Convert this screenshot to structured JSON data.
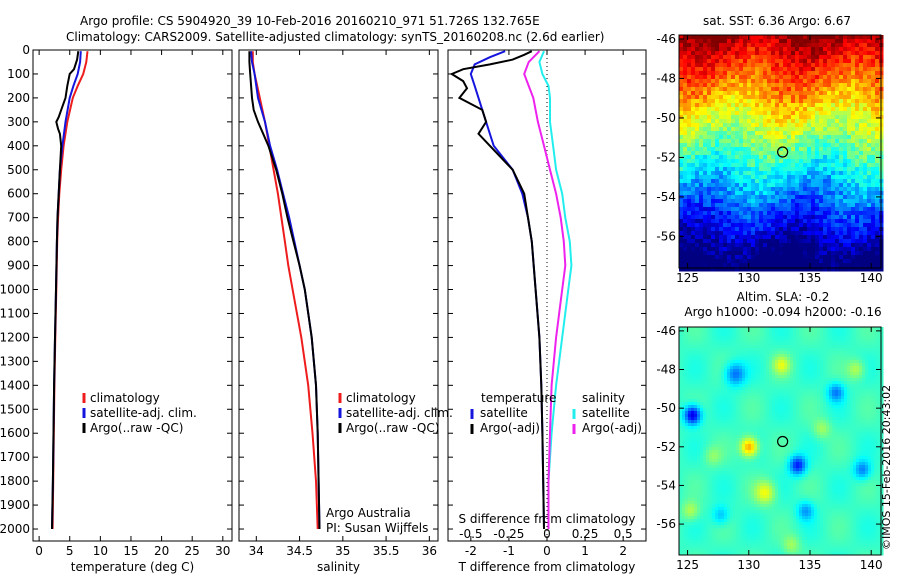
{
  "title_line1": "Argo profile: CS 5904920_39 10-Feb-2016 20160210_971 51.726S 132.765E",
  "title_line2": "Climatology: CARS2009. Satellite-adjusted climatology: synTS_20160208.nc (2.6d earlier)",
  "watermark": "©IMOS 15-Feb-2016 20:43:02",
  "colors": {
    "red": "#ee1c1c",
    "blue": "#1515dd",
    "black": "#000000",
    "cyan": "#22eeee",
    "magenta": "#ee22ee"
  },
  "chart_data": [
    {
      "id": "temperature",
      "type": "line",
      "xlabel": "temperature (deg C)",
      "ylabel": "",
      "xlim": [
        -1,
        31.5
      ],
      "ylim": [
        2050,
        0
      ],
      "xticks": [
        0,
        5,
        10,
        15,
        20,
        25,
        30
      ],
      "xtick_labels": [
        "0",
        "5",
        "10",
        "15",
        "20",
        "25",
        "30"
      ],
      "yticks": [
        0,
        100,
        200,
        300,
        400,
        500,
        600,
        700,
        800,
        900,
        1000,
        1100,
        1200,
        1300,
        1400,
        1500,
        1600,
        1700,
        1800,
        1900,
        2000
      ],
      "ytick_labels": [
        "0",
        "100",
        "200",
        "300",
        "400",
        "500",
        "600",
        "700",
        "800",
        "900",
        "1000",
        "1100",
        "1200",
        "1300",
        "1400",
        "1500",
        "1600",
        "1700",
        "1800",
        "1900",
        "2000"
      ],
      "legend": [
        "climatology",
        "satellite-adj. clim.",
        "Argo(..raw -QC)"
      ],
      "legend_placement": "center",
      "series": [
        {
          "name": "climatology",
          "color": "red",
          "depth": [
            5,
            50,
            100,
            150,
            200,
            300,
            400,
            500,
            600,
            700,
            800,
            1000,
            1200,
            1400,
            1600,
            1800,
            2000
          ],
          "values": [
            7.9,
            7.7,
            7.2,
            6.3,
            5.5,
            4.6,
            4.0,
            3.6,
            3.3,
            3.1,
            2.95,
            2.8,
            2.65,
            2.5,
            2.4,
            2.3,
            2.2
          ]
        },
        {
          "name": "satellite-adj. clim.",
          "color": "blue",
          "depth": [
            5,
            50,
            100,
            150,
            200,
            300,
            400,
            500,
            600,
            700,
            800,
            1000,
            1200,
            1400,
            1600,
            1800,
            2000
          ],
          "values": [
            6.8,
            6.7,
            6.3,
            5.6,
            5.0,
            4.3,
            3.8,
            3.4,
            3.2,
            3.0,
            2.9,
            2.75,
            2.6,
            2.45,
            2.35,
            2.25,
            2.1
          ]
        },
        {
          "name": "Argo(..raw -QC)",
          "color": "black",
          "depth": [
            5,
            40,
            80,
            100,
            150,
            200,
            250,
            280,
            300,
            330,
            350,
            400,
            500,
            600,
            700,
            800,
            1000,
            1200,
            1400,
            1600,
            1800,
            2000
          ],
          "values": [
            6.4,
            6.2,
            5.7,
            5.0,
            4.6,
            4.3,
            3.6,
            3.2,
            2.8,
            3.1,
            3.4,
            3.6,
            3.4,
            3.2,
            3.0,
            2.9,
            2.75,
            2.6,
            2.45,
            2.35,
            2.25,
            2.1
          ]
        }
      ]
    },
    {
      "id": "salinity",
      "type": "line",
      "xlabel": "salinity",
      "ylabel": "",
      "xlim": [
        33.8,
        36.1
      ],
      "ylim": [
        2050,
        0
      ],
      "xticks": [
        34,
        34.5,
        35,
        35.5,
        36
      ],
      "xtick_labels": [
        "34",
        "34.5",
        "35",
        "35.5",
        "36"
      ],
      "legend": [
        "climatology",
        "satellite-adj. clim.",
        "Argo(..raw -QC)"
      ],
      "legend_placement": "center",
      "annotations": [
        "Argo Australia",
        "PI: Susan Wijffels"
      ],
      "series": [
        {
          "name": "climatology",
          "color": "red",
          "depth": [
            5,
            50,
            100,
            200,
            300,
            400,
            500,
            600,
            700,
            800,
            900,
            1000,
            1200,
            1400,
            1600,
            1800,
            2000
          ],
          "values": [
            33.96,
            33.96,
            33.98,
            34.04,
            34.1,
            34.15,
            34.2,
            34.25,
            34.29,
            34.33,
            34.37,
            34.42,
            34.52,
            34.6,
            34.65,
            34.69,
            34.71
          ]
        },
        {
          "name": "satellite-adj. clim.",
          "color": "blue",
          "depth": [
            5,
            50,
            100,
            200,
            300,
            400,
            500,
            600,
            700,
            800,
            900,
            1000,
            1200,
            1400,
            1600,
            1800,
            2000
          ],
          "values": [
            33.94,
            33.95,
            33.98,
            34.02,
            34.1,
            34.16,
            34.24,
            34.31,
            34.38,
            34.44,
            34.5,
            34.56,
            34.64,
            34.69,
            34.71,
            34.72,
            34.73
          ]
        },
        {
          "name": "Argo(..raw -QC)",
          "color": "black",
          "depth": [
            5,
            50,
            100,
            150,
            200,
            250,
            300,
            350,
            400,
            500,
            600,
            700,
            800,
            900,
            1000,
            1200,
            1400,
            1600,
            1800,
            2000
          ],
          "values": [
            33.92,
            33.92,
            33.93,
            33.94,
            33.95,
            33.97,
            34.02,
            34.08,
            34.14,
            34.23,
            34.3,
            34.36,
            34.43,
            34.5,
            34.56,
            34.64,
            34.69,
            34.71,
            34.72,
            34.73
          ]
        }
      ]
    },
    {
      "id": "difference",
      "type": "line",
      "xlabel": "T difference from climatology",
      "xlabel_top": "S difference from climatology",
      "xlim": [
        -2.6,
        2.6
      ],
      "ylim": [
        2050,
        0
      ],
      "xticks": [
        -2,
        -1,
        0,
        1,
        2
      ],
      "xtick_labels": [
        "-2",
        "-1",
        "0",
        "1",
        "2"
      ],
      "xticks_S": [
        -0.5,
        -0.25,
        0,
        0.25,
        0.5
      ],
      "xtick_labels_S": [
        "-0.5",
        "-0.25",
        "0",
        "0.25",
        "0.5"
      ],
      "legend_left_title": "temperature",
      "legend_right_title": "salinity",
      "legend_left": [
        "satellite",
        "Argo(-adj)"
      ],
      "legend_right": [
        "satellite",
        "Argo(-adj)"
      ],
      "series": [
        {
          "name": "temperature satellite",
          "color": "blue",
          "depth": [
            5,
            30,
            60,
            100,
            150,
            200,
            300,
            400,
            500,
            600,
            700,
            800,
            1000,
            1200,
            1400,
            1600,
            1800,
            2000
          ],
          "values": [
            -1.1,
            -1.5,
            -1.9,
            -2.0,
            -1.9,
            -1.8,
            -1.6,
            -1.4,
            -0.9,
            -0.65,
            -0.5,
            -0.4,
            -0.3,
            -0.2,
            -0.15,
            -0.12,
            -0.1,
            -0.08
          ]
        },
        {
          "name": "temperature Argo(-adj)",
          "color": "black",
          "depth": [
            5,
            20,
            40,
            60,
            80,
            100,
            130,
            160,
            200,
            250,
            300,
            350,
            400,
            500,
            600,
            700,
            800,
            1000,
            1200,
            1400,
            1600,
            1800,
            2000
          ],
          "values": [
            -0.4,
            -0.6,
            -0.9,
            -1.5,
            -2.2,
            -2.5,
            -2.2,
            -2.1,
            -2.3,
            -1.7,
            -1.6,
            -1.8,
            -1.5,
            -0.9,
            -0.6,
            -0.5,
            -0.4,
            -0.3,
            -0.2,
            -0.15,
            -0.12,
            -0.1,
            -0.08
          ]
        },
        {
          "name": "salinity satellite",
          "color": "cyan",
          "depth": [
            5,
            50,
            100,
            150,
            200,
            300,
            400,
            500,
            600,
            700,
            800,
            900,
            1000,
            1200,
            1400,
            1600,
            1800,
            2000
          ],
          "values": [
            -0.02,
            -0.05,
            -0.03,
            0.01,
            0.02,
            0.02,
            0.04,
            0.06,
            0.1,
            0.12,
            0.15,
            0.16,
            0.14,
            0.1,
            0.06,
            0.03,
            0.01,
            0.01
          ]
        },
        {
          "name": "salinity Argo(-adj)",
          "color": "magenta",
          "depth": [
            5,
            50,
            100,
            150,
            200,
            300,
            400,
            500,
            600,
            700,
            800,
            900,
            1000,
            1200,
            1400,
            1600,
            1800,
            2000
          ],
          "values": [
            -0.05,
            -0.12,
            -0.15,
            -0.12,
            -0.09,
            -0.06,
            -0.02,
            0.02,
            0.06,
            0.09,
            0.11,
            0.12,
            0.1,
            0.06,
            0.03,
            0.02,
            0.01,
            0.01
          ]
        }
      ]
    },
    {
      "id": "sst_map",
      "type": "heatmap",
      "title": "sat. SST: 6.36 Argo: 6.67",
      "xlim": [
        124.3,
        140.8
      ],
      "ylim": [
        -57.6,
        -45.8
      ],
      "xticks": [
        125,
        130,
        135,
        140
      ],
      "xtick_labels": [
        "125",
        "130",
        "135",
        "140"
      ],
      "yticks": [
        -46,
        -48,
        -50,
        -52,
        -54,
        -56
      ],
      "ytick_labels": [
        "-46",
        "-48",
        "-50",
        "-52",
        "-54",
        "-56"
      ],
      "marker": {
        "lon": 132.765,
        "lat": -51.726
      }
    },
    {
      "id": "sla_map",
      "type": "heatmap",
      "title_line1": "Altim. SLA: -0.2",
      "title_line2": "Argo h1000: -0.094 h2000: -0.16",
      "xlim": [
        124.3,
        140.8
      ],
      "ylim": [
        -57.6,
        -45.8
      ],
      "xticks": [
        125,
        130,
        135,
        140
      ],
      "xtick_labels": [
        "125",
        "130",
        "135",
        "140"
      ],
      "yticks": [
        -46,
        -48,
        -50,
        -52,
        -54,
        -56
      ],
      "ytick_labels": [
        "-46",
        "-48",
        "-50",
        "-52",
        "-54",
        "-56"
      ],
      "marker": {
        "lon": 132.765,
        "lat": -51.726
      }
    }
  ]
}
